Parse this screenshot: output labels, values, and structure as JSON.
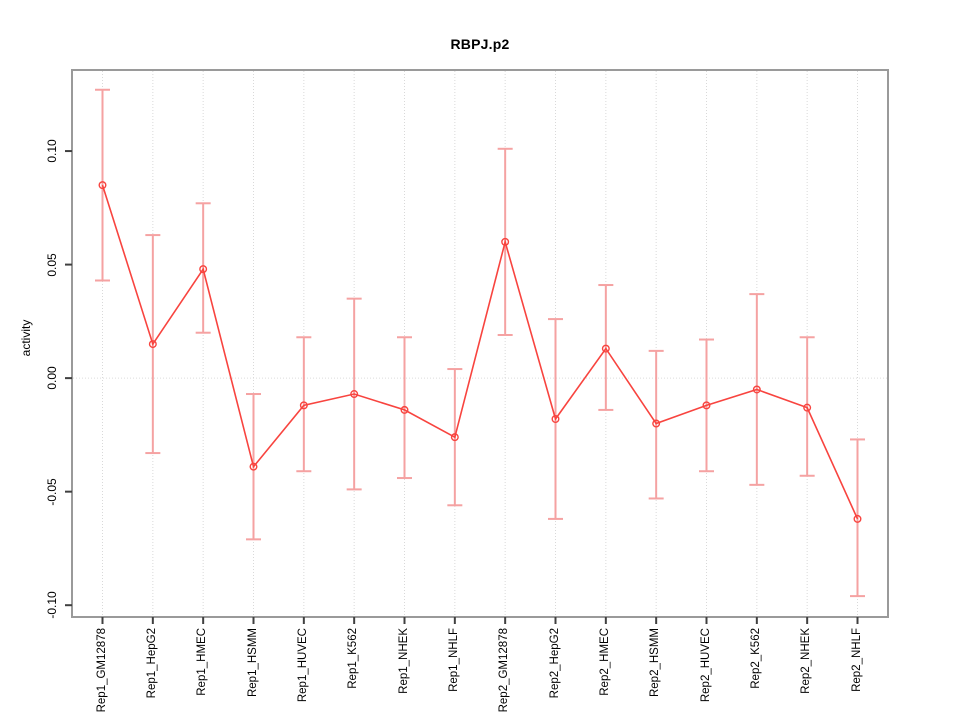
{
  "title": "RBPJ.p2",
  "axes": {
    "ylabel": "activity",
    "xlabel": "",
    "y_tick_labels": [
      "0.10",
      "0.05",
      "0.00",
      "-0.05",
      "-0.10"
    ],
    "y_tick_values": [
      0.1,
      0.05,
      0.0,
      -0.05,
      -0.1
    ]
  },
  "chart_data": {
    "type": "line",
    "title": "RBPJ.p2",
    "xlabel": "",
    "ylabel": "activity",
    "categories": [
      "Rep1_GM12878",
      "Rep1_HepG2",
      "Rep1_HMEC",
      "Rep1_HSMM",
      "Rep1_HUVEC",
      "Rep1_K562",
      "Rep1_NHEK",
      "Rep1_NHLF",
      "Rep2_GM12878",
      "Rep2_HepG2",
      "Rep2_HMEC",
      "Rep2_HSMM",
      "Rep2_HUVEC",
      "Rep2_K562",
      "Rep2_NHEK",
      "Rep2_NHLF"
    ],
    "series": [
      {
        "name": "activity",
        "marker": "open-circle",
        "values": [
          0.085,
          0.015,
          0.048,
          -0.039,
          -0.012,
          -0.007,
          -0.014,
          -0.026,
          0.06,
          -0.018,
          0.013,
          -0.02,
          -0.012,
          -0.005,
          -0.013,
          -0.062
        ],
        "lower": [
          0.043,
          -0.033,
          0.02,
          -0.071,
          -0.041,
          -0.049,
          -0.044,
          -0.056,
          0.019,
          -0.062,
          -0.014,
          -0.053,
          -0.041,
          -0.047,
          -0.043,
          -0.096
        ],
        "upper": [
          0.127,
          0.063,
          0.077,
          -0.007,
          0.018,
          0.035,
          0.018,
          0.004,
          0.101,
          0.026,
          0.041,
          0.012,
          0.017,
          0.037,
          0.018,
          -0.027
        ]
      }
    ],
    "ylim": [
      -0.1052,
      0.1357
    ],
    "y_ticks": [
      0.1,
      0.05,
      0.0,
      -0.05,
      -0.1
    ],
    "grid": "dotted vertical line at each category; dotted horizontal line at y=0",
    "legend": "none",
    "colors": {
      "point_line": "#f8443f",
      "error_bar": "#f5a2a2",
      "grid": "#d9d9d9",
      "zero_line": "#dcdcdc",
      "frame": "#9a9a9a",
      "tick": "#404040",
      "text": "#000000"
    }
  }
}
